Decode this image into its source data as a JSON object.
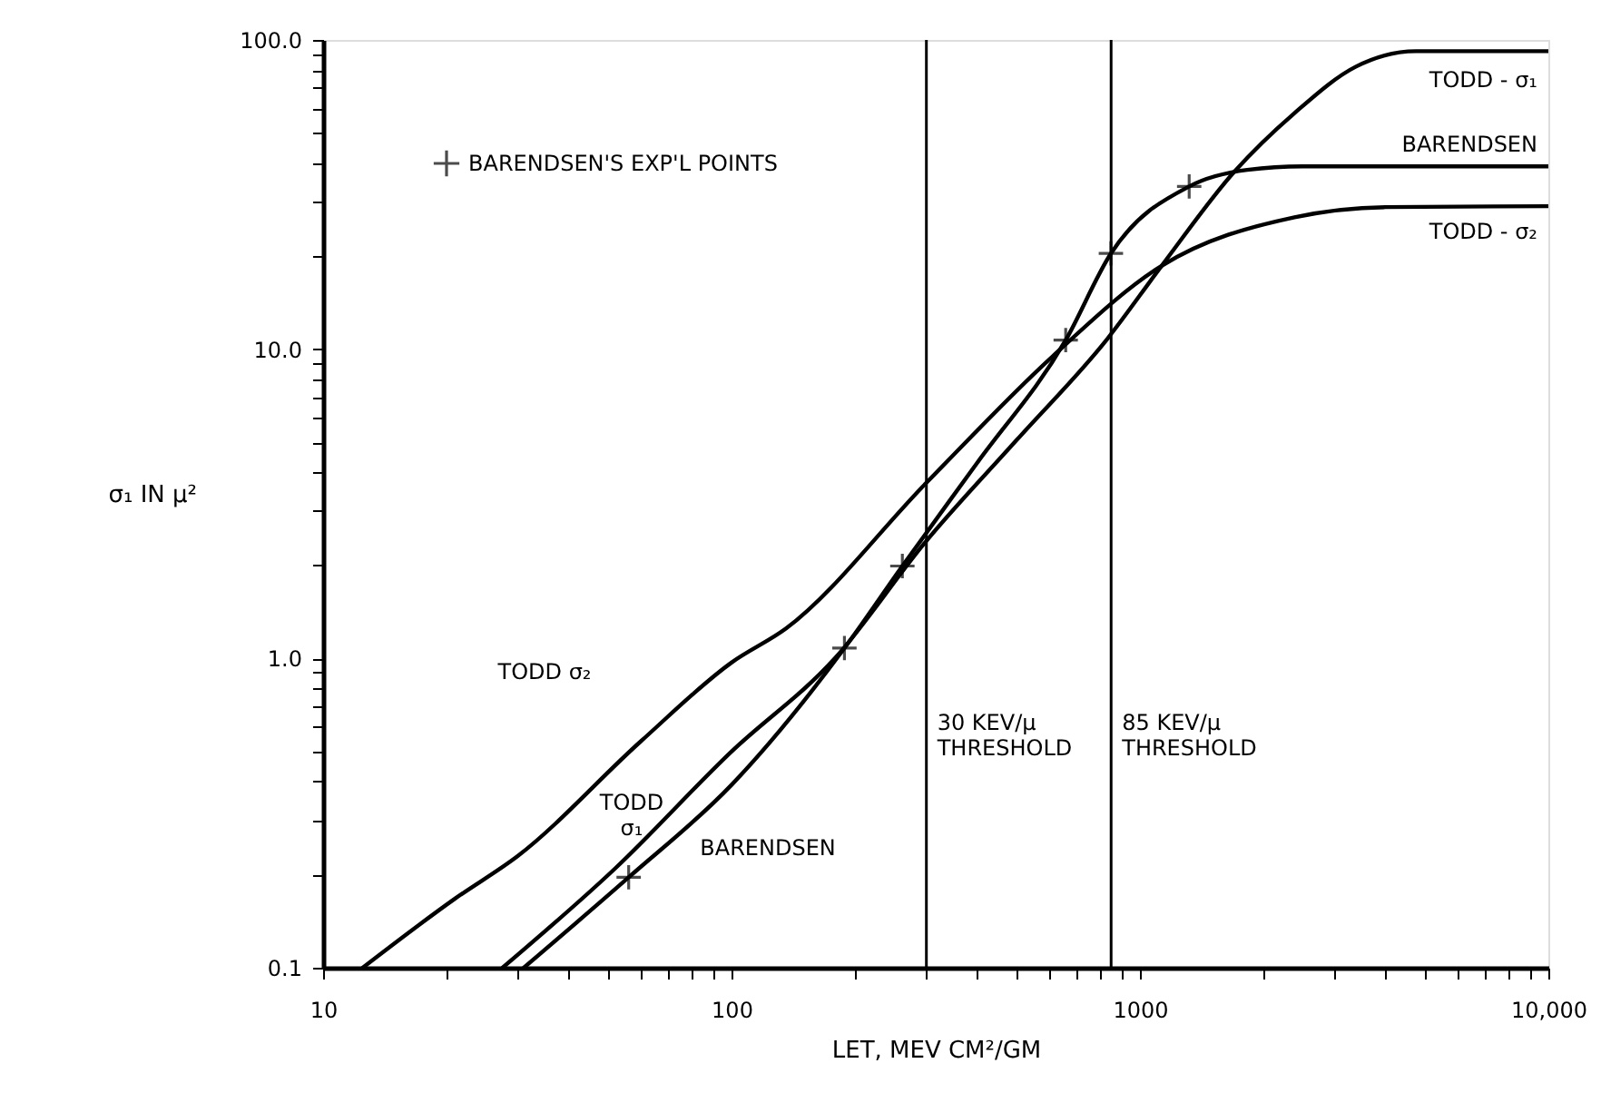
{
  "chart_data": {
    "type": "line",
    "xlabel": "LET, MEV CM²/GM",
    "ylabel": "σ₁ IN μ²",
    "log": "xy",
    "grid": false,
    "legend": "top left",
    "line_style": "solid",
    "xlim": [
      10,
      10000
    ],
    "ylim": [
      0.1,
      100
    ],
    "xticks": [
      10,
      {
        "value": 20,
        "label": null
      },
      {
        "value": 30,
        "label": null
      },
      {
        "value": 40,
        "label": null
      },
      {
        "value": 50,
        "label": null
      },
      {
        "value": 60,
        "label": null
      },
      {
        "value": 70,
        "label": null
      },
      {
        "value": 80,
        "label": null
      },
      {
        "value": 90,
        "label": null
      },
      100,
      {
        "value": 200,
        "label": null
      },
      {
        "value": 300,
        "label": null
      },
      {
        "value": 400,
        "label": null
      },
      {
        "value": 500,
        "label": null
      },
      {
        "value": 600,
        "label": null
      },
      {
        "value": 700,
        "label": null
      },
      {
        "value": 800,
        "label": null
      },
      {
        "value": 900,
        "label": null
      },
      1000,
      {
        "value": 2000,
        "label": null
      },
      {
        "value": 3000,
        "label": null
      },
      {
        "value": 4000,
        "label": null
      },
      {
        "value": 5000,
        "label": null
      },
      {
        "value": 6000,
        "label": null
      },
      {
        "value": 7000,
        "label": null
      },
      {
        "value": 8000,
        "label": null
      },
      {
        "value": 9000,
        "label": null
      },
      {
        "value": 10000,
        "label": "10,000"
      }
    ],
    "yticks": [
      {
        "value": 0.1,
        "label": "0.1"
      },
      {
        "value": 0.2,
        "label": null
      },
      {
        "value": 0.3,
        "label": null
      },
      {
        "value": 0.4,
        "label": null
      },
      {
        "value": 0.5,
        "label": null
      },
      {
        "value": 0.6,
        "label": null
      },
      {
        "value": 0.7,
        "label": null
      },
      {
        "value": 0.8,
        "label": null
      },
      {
        "value": 0.9,
        "label": null
      },
      {
        "value": 1,
        "label": "1.0"
      },
      {
        "value": 2,
        "label": null
      },
      {
        "value": 3,
        "label": null
      },
      {
        "value": 4,
        "label": null
      },
      {
        "value": 5,
        "label": null
      },
      {
        "value": 6,
        "label": null
      },
      {
        "value": 7,
        "label": null
      },
      {
        "value": 8,
        "label": null
      },
      {
        "value": 9,
        "label": null
      },
      {
        "value": 10,
        "label": "10.0"
      },
      {
        "value": 20,
        "label": null
      },
      {
        "value": 30,
        "label": null
      },
      {
        "value": 40,
        "label": null
      },
      {
        "value": 50,
        "label": null
      },
      {
        "value": 60,
        "label": null
      },
      {
        "value": 70,
        "label": null
      },
      {
        "value": 80,
        "label": null
      },
      {
        "value": 90,
        "label": null
      },
      {
        "value": 100,
        "label": "100.0"
      }
    ],
    "series": [
      {
        "name": "TODD - σ₁",
        "marker": "none",
        "color": "#000000",
        "x": [
          27.5,
          52,
          100,
          179,
          300,
          500,
          832,
          1130,
          1700,
          2390,
          3380,
          4740,
          10000
        ],
        "values": [
          0.1,
          0.21,
          0.5,
          1.0,
          2.4,
          5.1,
          10.8,
          18.6,
          37.4,
          58,
          82,
          92,
          92
        ]
      },
      {
        "name": "BARENDSEN",
        "marker": "none",
        "color": "#000000",
        "x": [
          31,
          56,
          100,
          189,
          262,
          400,
          658,
          849,
          1320,
          1830,
          2500,
          4000,
          10000
        ],
        "values": [
          0.1,
          0.196,
          0.39,
          1.08,
          1.99,
          4.3,
          10.7,
          20.4,
          33.6,
          38,
          39,
          39,
          39
        ]
      },
      {
        "name": "TODD - σ₂",
        "marker": "none",
        "color": "#000000",
        "x": [
          12.5,
          21,
          30,
          60,
          100,
          136,
          300,
          612,
          1130,
          2390,
          4000,
          10000
        ],
        "values": [
          0.1,
          0.167,
          0.23,
          0.54,
          0.97,
          1.25,
          3.7,
          9.5,
          18.6,
          26.7,
          28.8,
          29
        ]
      },
      {
        "type": "scatter",
        "name": "BARENDSEN'S EXP'L POINTS",
        "marker": "cross",
        "color": "#000000",
        "x": [
          56,
          189,
          262,
          658,
          849,
          1320
        ],
        "values": [
          0.196,
          1.08,
          1.99,
          10.7,
          20.4,
          33.6
        ]
      }
    ],
    "ref_lines": [
      {
        "axis": "x",
        "value": 300,
        "label": "30 KEV/μ\nTHRESHOLD",
        "color": "#000000"
      },
      {
        "axis": "x",
        "value": 850,
        "label": "85 KEV/μ\nTHRESHOLD",
        "color": "#000000"
      }
    ],
    "annotations": [
      "TODD σ₂",
      "TODD\nσ₁",
      "BARENDSEN"
    ]
  }
}
